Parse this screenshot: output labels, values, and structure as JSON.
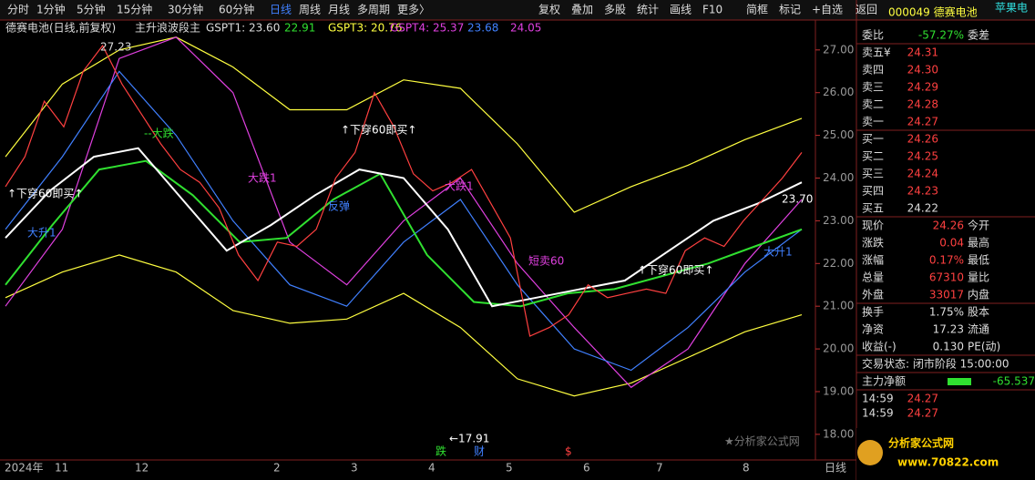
{
  "toolbar": {
    "left": [
      "分时",
      "1分钟",
      "5分钟",
      "15分钟",
      "30分钟",
      "60分钟",
      "日线",
      "周线",
      "月线",
      "多周期",
      "更多〉"
    ],
    "right": [
      "复权",
      "叠加",
      "多股",
      "统计",
      "画线",
      "F10",
      "简框",
      "标记",
      "+自选",
      "返回"
    ]
  },
  "header": {
    "name": "德赛电池(日线,前复权)",
    "indicator": "主升浪波段主",
    "gspt1": "GSPT1: 23.60",
    "v2": "22.91",
    "gspt3": "GSPT3: 20.76",
    "gspt4": "GSPT4: 25.37",
    "v5": "23.68",
    "v6": "24.05"
  },
  "chart": {
    "type": "line",
    "ylim": [
      17.4,
      27.7
    ],
    "yticks": [
      {
        "value": 27,
        "label": "27.00"
      },
      {
        "value": 26,
        "label": "26.00"
      },
      {
        "value": 25,
        "label": "25.00"
      },
      {
        "value": 24,
        "label": "24.00"
      },
      {
        "value": 23,
        "label": "23.00"
      },
      {
        "value": 22,
        "label": "22.00"
      },
      {
        "value": 21,
        "label": "21.00"
      },
      {
        "value": 20,
        "label": "20.00"
      },
      {
        "value": 19,
        "label": "19.00"
      },
      {
        "value": 18,
        "label": "18.00"
      }
    ],
    "xlabels": [
      "2024年",
      "11",
      "12",
      "2",
      "3",
      "4",
      "5",
      "6",
      "7",
      "8",
      "日线"
    ],
    "series": [
      {
        "color": "#ffff40",
        "values": [
          24.5,
          26.2,
          27.0,
          27.3,
          26.6,
          25.6,
          25.6,
          26.3,
          26.1,
          24.8,
          23.2,
          23.8,
          24.3,
          24.9,
          25.4
        ]
      },
      {
        "color": "#ffff40",
        "values": [
          21.2,
          21.8,
          22.2,
          21.8,
          20.9,
          20.6,
          20.7,
          21.3,
          20.5,
          19.3,
          18.9,
          19.2,
          19.8,
          20.4,
          20.8
        ]
      },
      {
        "color": "#e040e0",
        "values": [
          21.0,
          22.8,
          26.8,
          27.3,
          26.0,
          22.5,
          21.5,
          23.0,
          24.0,
          22.0,
          20.5,
          19.1,
          20.0,
          22.0,
          23.5
        ]
      },
      {
        "color": "#4080ff",
        "values": [
          22.8,
          24.5,
          26.5,
          25.0,
          23.0,
          21.5,
          21.0,
          22.5,
          23.5,
          21.5,
          20.0,
          19.5,
          20.5,
          21.8,
          22.8
        ]
      },
      {
        "color": "#30e030",
        "values": [
          21.5,
          22.9,
          24.2,
          24.4,
          23.6,
          22.5,
          22.6,
          23.5,
          24.1,
          22.2,
          21.1,
          21.0,
          21.3,
          21.4,
          21.7,
          22.0,
          22.4,
          22.8
        ]
      },
      {
        "color": "#ffffff",
        "values": [
          22.6,
          23.7,
          24.5,
          24.7,
          23.5,
          22.3,
          22.9,
          23.6,
          24.2,
          24.0,
          22.8,
          21.0,
          21.2,
          21.4,
          21.6,
          22.3,
          23.0,
          23.4,
          23.9
        ]
      },
      {
        "color": "#ff4040",
        "values": [
          23.8,
          24.5,
          25.8,
          25.2,
          26.5,
          27.1,
          26.2,
          25.5,
          24.8,
          24.2,
          23.9,
          23.3,
          22.2,
          21.6,
          22.5,
          22.4,
          22.8,
          24.0,
          24.6,
          26.0,
          25.2,
          24.1,
          23.7,
          23.9,
          24.2,
          23.4,
          22.6,
          20.3,
          20.5,
          20.8,
          21.5,
          21.2,
          21.3,
          21.4,
          21.3,
          22.3,
          22.6,
          22.4,
          23.0,
          23.5,
          24.0,
          24.6
        ]
      }
    ],
    "annotations": [
      "27.23",
      "↑下穿60即买↑",
      "--大跌",
      "大跌1",
      "反弹",
      "↑下穿60即买↑",
      "大跌1",
      "短卖60",
      "↑下穿60即买↑",
      "大升1",
      "←17.91",
      "23.70",
      "大升1",
      "跌",
      "财",
      "$"
    ],
    "watermark": "★分析家公式网"
  },
  "panel": {
    "code": "000049 德赛电池",
    "tag": "苹果电",
    "weibi": [
      "委比",
      "-57.27%",
      "委差"
    ],
    "sell": [
      [
        "卖五¥",
        "24.31"
      ],
      [
        "卖四",
        "24.30"
      ],
      [
        "卖三",
        "24.29"
      ],
      [
        "卖二",
        "24.28"
      ],
      [
        "卖一",
        "24.27"
      ]
    ],
    "buy": [
      [
        "买一",
        "24.26"
      ],
      [
        "买二",
        "24.25"
      ],
      [
        "买三",
        "24.24"
      ],
      [
        "买四",
        "24.23"
      ],
      [
        "买五",
        "24.22"
      ]
    ],
    "quote": [
      [
        "现价",
        "24.26",
        "今开"
      ],
      [
        "涨跌",
        "0.04",
        "最高"
      ],
      [
        "涨幅",
        "0.17%",
        "最低"
      ],
      [
        "总量",
        "67310",
        "量比"
      ],
      [
        "外盘",
        "33017",
        "内盘"
      ]
    ],
    "fin": [
      [
        "换手",
        "1.75%",
        "股本"
      ],
      [
        "净资",
        "17.23",
        "流通"
      ],
      [
        "收益(-)",
        "0.130",
        "PE(动)"
      ]
    ],
    "status": "交易状态: 闭市阶段 15:00:00",
    "flow": [
      "主力净额",
      "-65.537"
    ],
    "ticks": [
      [
        "14:59",
        "24.27"
      ],
      [
        "14:59",
        "24.27"
      ]
    ]
  },
  "logo": {
    "name": "分析家公式网",
    "url": "www.70822.com"
  }
}
